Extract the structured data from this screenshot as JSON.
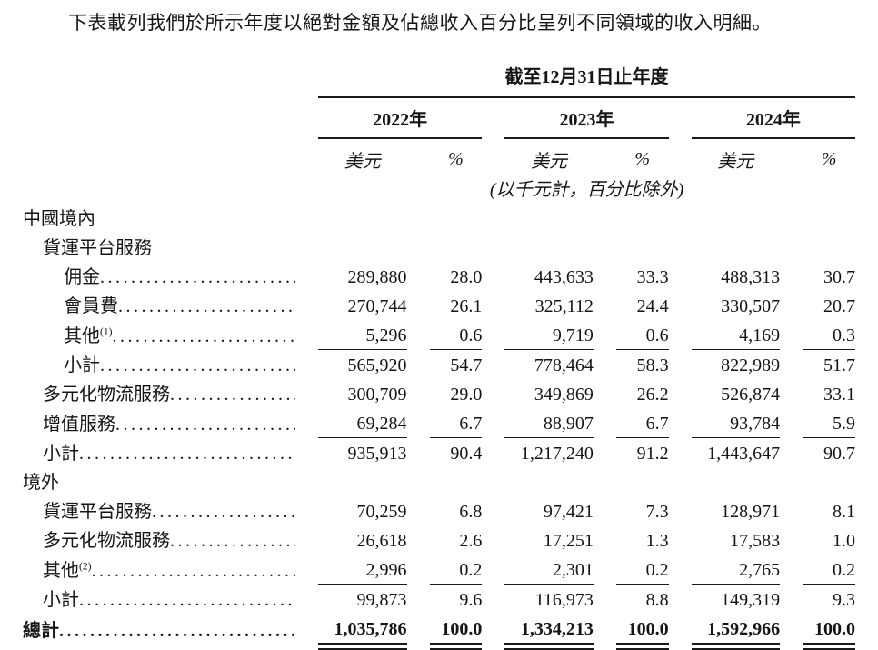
{
  "intro": "下表載列我們於所示年度以絕對金額及佔總收入百分比呈列不同領域的收入明細。",
  "table": {
    "span_header": "截至12月31日止年度",
    "unit_note": "(以千元計，百分比除外)",
    "leader_dots": "........................................................",
    "year_groups": [
      {
        "year": "2022年",
        "usd_label": "美元",
        "pct_label": "%"
      },
      {
        "year": "2023年",
        "usd_label": "美元",
        "pct_label": "%"
      },
      {
        "year": "2024年",
        "usd_label": "美元",
        "pct_label": "%"
      }
    ],
    "rows": [
      {
        "label": "中國境內",
        "indent": 0,
        "section": true,
        "values": []
      },
      {
        "label": "貨運平台服務",
        "indent": 1,
        "section": true,
        "values": []
      },
      {
        "label": "佣金",
        "indent": 2,
        "leader": true,
        "values": [
          "289,880",
          "28.0",
          "443,633",
          "33.3",
          "488,313",
          "30.7"
        ]
      },
      {
        "label": "會員費",
        "indent": 2,
        "leader": true,
        "values": [
          "270,744",
          "26.1",
          "325,112",
          "24.4",
          "330,507",
          "20.7"
        ]
      },
      {
        "label": "其他",
        "sup": "(1)",
        "indent": 2,
        "leader": true,
        "rule_below": true,
        "values": [
          "5,296",
          "0.6",
          "9,719",
          "0.6",
          "4,169",
          "0.3"
        ]
      },
      {
        "label": "小計",
        "indent": 2,
        "leader": true,
        "values": [
          "565,920",
          "54.7",
          "778,464",
          "58.3",
          "822,989",
          "51.7"
        ]
      },
      {
        "label": "多元化物流服務",
        "indent": 1,
        "leader": true,
        "values": [
          "300,709",
          "29.0",
          "349,869",
          "26.2",
          "526,874",
          "33.1"
        ]
      },
      {
        "label": "增值服務",
        "indent": 1,
        "leader": true,
        "rule_below": true,
        "values": [
          "69,284",
          "6.7",
          "88,907",
          "6.7",
          "93,784",
          "5.9"
        ]
      },
      {
        "label": "小計",
        "indent": 1,
        "leader": true,
        "values": [
          "935,913",
          "90.4",
          "1,217,240",
          "91.2",
          "1,443,647",
          "90.7"
        ]
      },
      {
        "label": "境外",
        "indent": 0,
        "section": true,
        "values": []
      },
      {
        "label": "貨運平台服務",
        "indent": 1,
        "leader": true,
        "values": [
          "70,259",
          "6.8",
          "97,421",
          "7.3",
          "128,971",
          "8.1"
        ]
      },
      {
        "label": "多元化物流服務",
        "indent": 1,
        "leader": true,
        "values": [
          "26,618",
          "2.6",
          "17,251",
          "1.3",
          "17,583",
          "1.0"
        ]
      },
      {
        "label": "其他",
        "sup": "(2)",
        "indent": 1,
        "leader": true,
        "rule_below": true,
        "values": [
          "2,996",
          "0.2",
          "2,301",
          "0.2",
          "2,765",
          "0.2"
        ]
      },
      {
        "label": "小計",
        "indent": 1,
        "leader": true,
        "values": [
          "99,873",
          "9.6",
          "116,973",
          "8.8",
          "149,319",
          "9.3"
        ]
      },
      {
        "label": "總計",
        "indent": 0,
        "leader": true,
        "bold": true,
        "double_rule_below": true,
        "values": [
          "1,035,786",
          "100.0",
          "1,334,213",
          "100.0",
          "1,592,966",
          "100.0"
        ]
      }
    ]
  }
}
